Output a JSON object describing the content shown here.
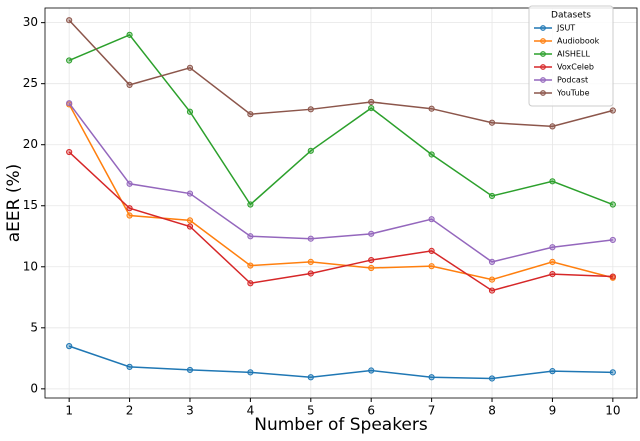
{
  "chart_data": {
    "type": "line",
    "x_label": "Number of Speakers",
    "y_label": "aEER (%)",
    "x": [
      1,
      2,
      3,
      4,
      5,
      6,
      7,
      8,
      9,
      10
    ],
    "series": [
      {
        "name": "JSUT",
        "color": "#1f77b4",
        "values": [
          3.5,
          1.8,
          1.55,
          1.35,
          0.95,
          1.5,
          0.95,
          0.85,
          1.45,
          1.35
        ]
      },
      {
        "name": "Audiobook",
        "color": "#ff7f0e",
        "values": [
          23.3,
          14.2,
          13.8,
          10.1,
          10.4,
          9.9,
          10.05,
          8.95,
          10.4,
          9.1
        ]
      },
      {
        "name": "AISHELL",
        "color": "#2ca02c",
        "values": [
          26.9,
          29.0,
          22.7,
          15.1,
          19.5,
          23.0,
          19.2,
          15.8,
          17.0,
          15.1
        ]
      },
      {
        "name": "VoxCeleb",
        "color": "#d62728",
        "values": [
          19.4,
          14.8,
          13.3,
          8.65,
          9.45,
          10.55,
          11.3,
          8.05,
          9.4,
          9.2
        ]
      },
      {
        "name": "Podcast",
        "color": "#9467bd",
        "values": [
          23.4,
          16.8,
          16.0,
          12.5,
          12.3,
          12.7,
          13.9,
          10.4,
          11.6,
          12.2
        ]
      },
      {
        "name": "YouTube",
        "color": "#8c564b",
        "values": [
          30.2,
          24.9,
          26.3,
          22.5,
          22.9,
          23.5,
          22.95,
          21.8,
          21.5,
          22.8
        ]
      }
    ],
    "legend_title": "Datasets",
    "legend_position": "upper right",
    "xlim": [
      0.6,
      10.4
    ],
    "xticks": [
      1,
      2,
      3,
      4,
      5,
      6,
      7,
      8,
      9,
      10
    ],
    "ylim": [
      -0.75,
      31.2
    ],
    "yticks": [
      0,
      5,
      10,
      15,
      20,
      25,
      30
    ],
    "grid": true
  }
}
